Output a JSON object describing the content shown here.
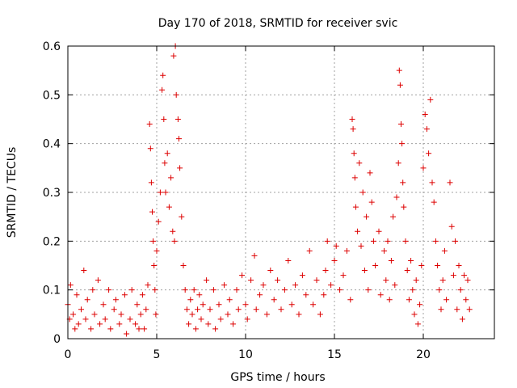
{
  "chart_data": {
    "type": "scatter",
    "title": "Day 170 of 2018, SRMTID for receiver svic",
    "xlabel": "GPS time / hours",
    "ylabel": "SRMTID / TECUs",
    "xlim": [
      0,
      24
    ],
    "ylim": [
      0,
      0.6
    ],
    "xticks": [
      "0",
      "5",
      "10",
      "15",
      "20"
    ],
    "xtick_values": [
      0,
      5,
      10,
      15,
      20
    ],
    "yticks": [
      "0",
      "0.1",
      "0.2",
      "0.3",
      "0.4",
      "0.5",
      "0.6"
    ],
    "ytick_values": [
      0,
      0.1,
      0.2,
      0.3,
      0.4,
      0.5,
      0.6
    ],
    "grid": true,
    "marker": "plus",
    "color": "#dd0000",
    "series": [
      {
        "name": "SRMTID",
        "points": [
          [
            0.0,
            0.07
          ],
          [
            0.1,
            0.04
          ],
          [
            0.15,
            0.11
          ],
          [
            0.3,
            0.05
          ],
          [
            0.4,
            0.02
          ],
          [
            0.5,
            0.09
          ],
          [
            0.6,
            0.03
          ],
          [
            0.75,
            0.06
          ],
          [
            0.9,
            0.14
          ],
          [
            1.0,
            0.04
          ],
          [
            1.1,
            0.08
          ],
          [
            1.3,
            0.02
          ],
          [
            1.4,
            0.1
          ],
          [
            1.5,
            0.05
          ],
          [
            1.7,
            0.12
          ],
          [
            1.8,
            0.03
          ],
          [
            2.0,
            0.07
          ],
          [
            2.1,
            0.04
          ],
          [
            2.3,
            0.1
          ],
          [
            2.4,
            0.02
          ],
          [
            2.6,
            0.06
          ],
          [
            2.7,
            0.08
          ],
          [
            2.9,
            0.03
          ],
          [
            3.0,
            0.05
          ],
          [
            3.2,
            0.09
          ],
          [
            3.3,
            0.01
          ],
          [
            3.5,
            0.04
          ],
          [
            3.6,
            0.1
          ],
          [
            3.8,
            0.03
          ],
          [
            3.9,
            0.07
          ],
          [
            4.0,
            0.02
          ],
          [
            4.1,
            0.05
          ],
          [
            4.2,
            0.09
          ],
          [
            4.3,
            0.02
          ],
          [
            4.4,
            0.06
          ],
          [
            4.5,
            0.11
          ],
          [
            4.6,
            0.44
          ],
          [
            4.65,
            0.39
          ],
          [
            4.7,
            0.32
          ],
          [
            4.75,
            0.26
          ],
          [
            4.8,
            0.2
          ],
          [
            4.85,
            0.15
          ],
          [
            4.9,
            0.1
          ],
          [
            4.95,
            0.05
          ],
          [
            5.0,
            0.18
          ],
          [
            5.1,
            0.24
          ],
          [
            5.2,
            0.3
          ],
          [
            5.3,
            0.51
          ],
          [
            5.35,
            0.54
          ],
          [
            5.4,
            0.45
          ],
          [
            5.45,
            0.36
          ],
          [
            5.5,
            0.3
          ],
          [
            5.6,
            0.38
          ],
          [
            5.7,
            0.27
          ],
          [
            5.8,
            0.33
          ],
          [
            5.9,
            0.22
          ],
          [
            5.95,
            0.58
          ],
          [
            6.0,
            0.2
          ],
          [
            6.05,
            0.6
          ],
          [
            6.1,
            0.5
          ],
          [
            6.2,
            0.45
          ],
          [
            6.25,
            0.41
          ],
          [
            6.3,
            0.35
          ],
          [
            6.4,
            0.25
          ],
          [
            6.5,
            0.15
          ],
          [
            6.6,
            0.1
          ],
          [
            6.7,
            0.06
          ],
          [
            6.8,
            0.03
          ],
          [
            6.9,
            0.08
          ],
          [
            7.0,
            0.05
          ],
          [
            7.1,
            0.1
          ],
          [
            7.2,
            0.02
          ],
          [
            7.3,
            0.06
          ],
          [
            7.4,
            0.09
          ],
          [
            7.5,
            0.04
          ],
          [
            7.6,
            0.07
          ],
          [
            7.8,
            0.12
          ],
          [
            7.9,
            0.03
          ],
          [
            8.0,
            0.06
          ],
          [
            8.2,
            0.1
          ],
          [
            8.3,
            0.02
          ],
          [
            8.5,
            0.07
          ],
          [
            8.6,
            0.04
          ],
          [
            8.8,
            0.11
          ],
          [
            9.0,
            0.05
          ],
          [
            9.1,
            0.08
          ],
          [
            9.3,
            0.03
          ],
          [
            9.5,
            0.1
          ],
          [
            9.6,
            0.06
          ],
          [
            9.8,
            0.13
          ],
          [
            10.0,
            0.07
          ],
          [
            10.1,
            0.04
          ],
          [
            10.3,
            0.12
          ],
          [
            10.5,
            0.17
          ],
          [
            10.6,
            0.06
          ],
          [
            10.8,
            0.09
          ],
          [
            11.0,
            0.11
          ],
          [
            11.2,
            0.05
          ],
          [
            11.4,
            0.14
          ],
          [
            11.6,
            0.08
          ],
          [
            11.8,
            0.12
          ],
          [
            12.0,
            0.06
          ],
          [
            12.2,
            0.1
          ],
          [
            12.4,
            0.16
          ],
          [
            12.6,
            0.07
          ],
          [
            12.8,
            0.11
          ],
          [
            13.0,
            0.05
          ],
          [
            13.2,
            0.13
          ],
          [
            13.4,
            0.09
          ],
          [
            13.6,
            0.18
          ],
          [
            13.8,
            0.07
          ],
          [
            14.0,
            0.12
          ],
          [
            14.2,
            0.05
          ],
          [
            14.4,
            0.09
          ],
          [
            14.5,
            0.14
          ],
          [
            14.6,
            0.2
          ],
          [
            14.8,
            0.11
          ],
          [
            15.0,
            0.16
          ],
          [
            15.1,
            0.19
          ],
          [
            15.3,
            0.1
          ],
          [
            15.5,
            0.13
          ],
          [
            15.7,
            0.18
          ],
          [
            15.9,
            0.08
          ],
          [
            16.0,
            0.45
          ],
          [
            16.05,
            0.43
          ],
          [
            16.1,
            0.38
          ],
          [
            16.15,
            0.33
          ],
          [
            16.2,
            0.27
          ],
          [
            16.3,
            0.22
          ],
          [
            16.4,
            0.36
          ],
          [
            16.5,
            0.19
          ],
          [
            16.6,
            0.3
          ],
          [
            16.7,
            0.14
          ],
          [
            16.8,
            0.25
          ],
          [
            16.9,
            0.1
          ],
          [
            17.0,
            0.34
          ],
          [
            17.1,
            0.28
          ],
          [
            17.2,
            0.2
          ],
          [
            17.3,
            0.15
          ],
          [
            17.5,
            0.22
          ],
          [
            17.6,
            0.09
          ],
          [
            17.8,
            0.18
          ],
          [
            17.9,
            0.12
          ],
          [
            18.0,
            0.2
          ],
          [
            18.1,
            0.08
          ],
          [
            18.2,
            0.16
          ],
          [
            18.3,
            0.25
          ],
          [
            18.4,
            0.11
          ],
          [
            18.5,
            0.29
          ],
          [
            18.6,
            0.36
          ],
          [
            18.65,
            0.55
          ],
          [
            18.7,
            0.52
          ],
          [
            18.75,
            0.44
          ],
          [
            18.8,
            0.4
          ],
          [
            18.85,
            0.32
          ],
          [
            18.9,
            0.27
          ],
          [
            19.0,
            0.2
          ],
          [
            19.1,
            0.14
          ],
          [
            19.2,
            0.08
          ],
          [
            19.3,
            0.16
          ],
          [
            19.4,
            0.1
          ],
          [
            19.5,
            0.05
          ],
          [
            19.6,
            0.12
          ],
          [
            19.7,
            0.03
          ],
          [
            19.8,
            0.07
          ],
          [
            19.9,
            0.15
          ],
          [
            20.0,
            0.35
          ],
          [
            20.1,
            0.46
          ],
          [
            20.2,
            0.43
          ],
          [
            20.3,
            0.38
          ],
          [
            20.4,
            0.49
          ],
          [
            20.5,
            0.32
          ],
          [
            20.6,
            0.28
          ],
          [
            20.7,
            0.2
          ],
          [
            20.8,
            0.15
          ],
          [
            20.9,
            0.1
          ],
          [
            21.0,
            0.06
          ],
          [
            21.1,
            0.12
          ],
          [
            21.2,
            0.18
          ],
          [
            21.3,
            0.08
          ],
          [
            21.5,
            0.32
          ],
          [
            21.6,
            0.23
          ],
          [
            21.7,
            0.13
          ],
          [
            21.8,
            0.2
          ],
          [
            21.9,
            0.06
          ],
          [
            22.0,
            0.15
          ],
          [
            22.1,
            0.1
          ],
          [
            22.2,
            0.04
          ],
          [
            22.3,
            0.13
          ],
          [
            22.4,
            0.08
          ],
          [
            22.5,
            0.12
          ],
          [
            22.6,
            0.06
          ]
        ]
      }
    ]
  }
}
